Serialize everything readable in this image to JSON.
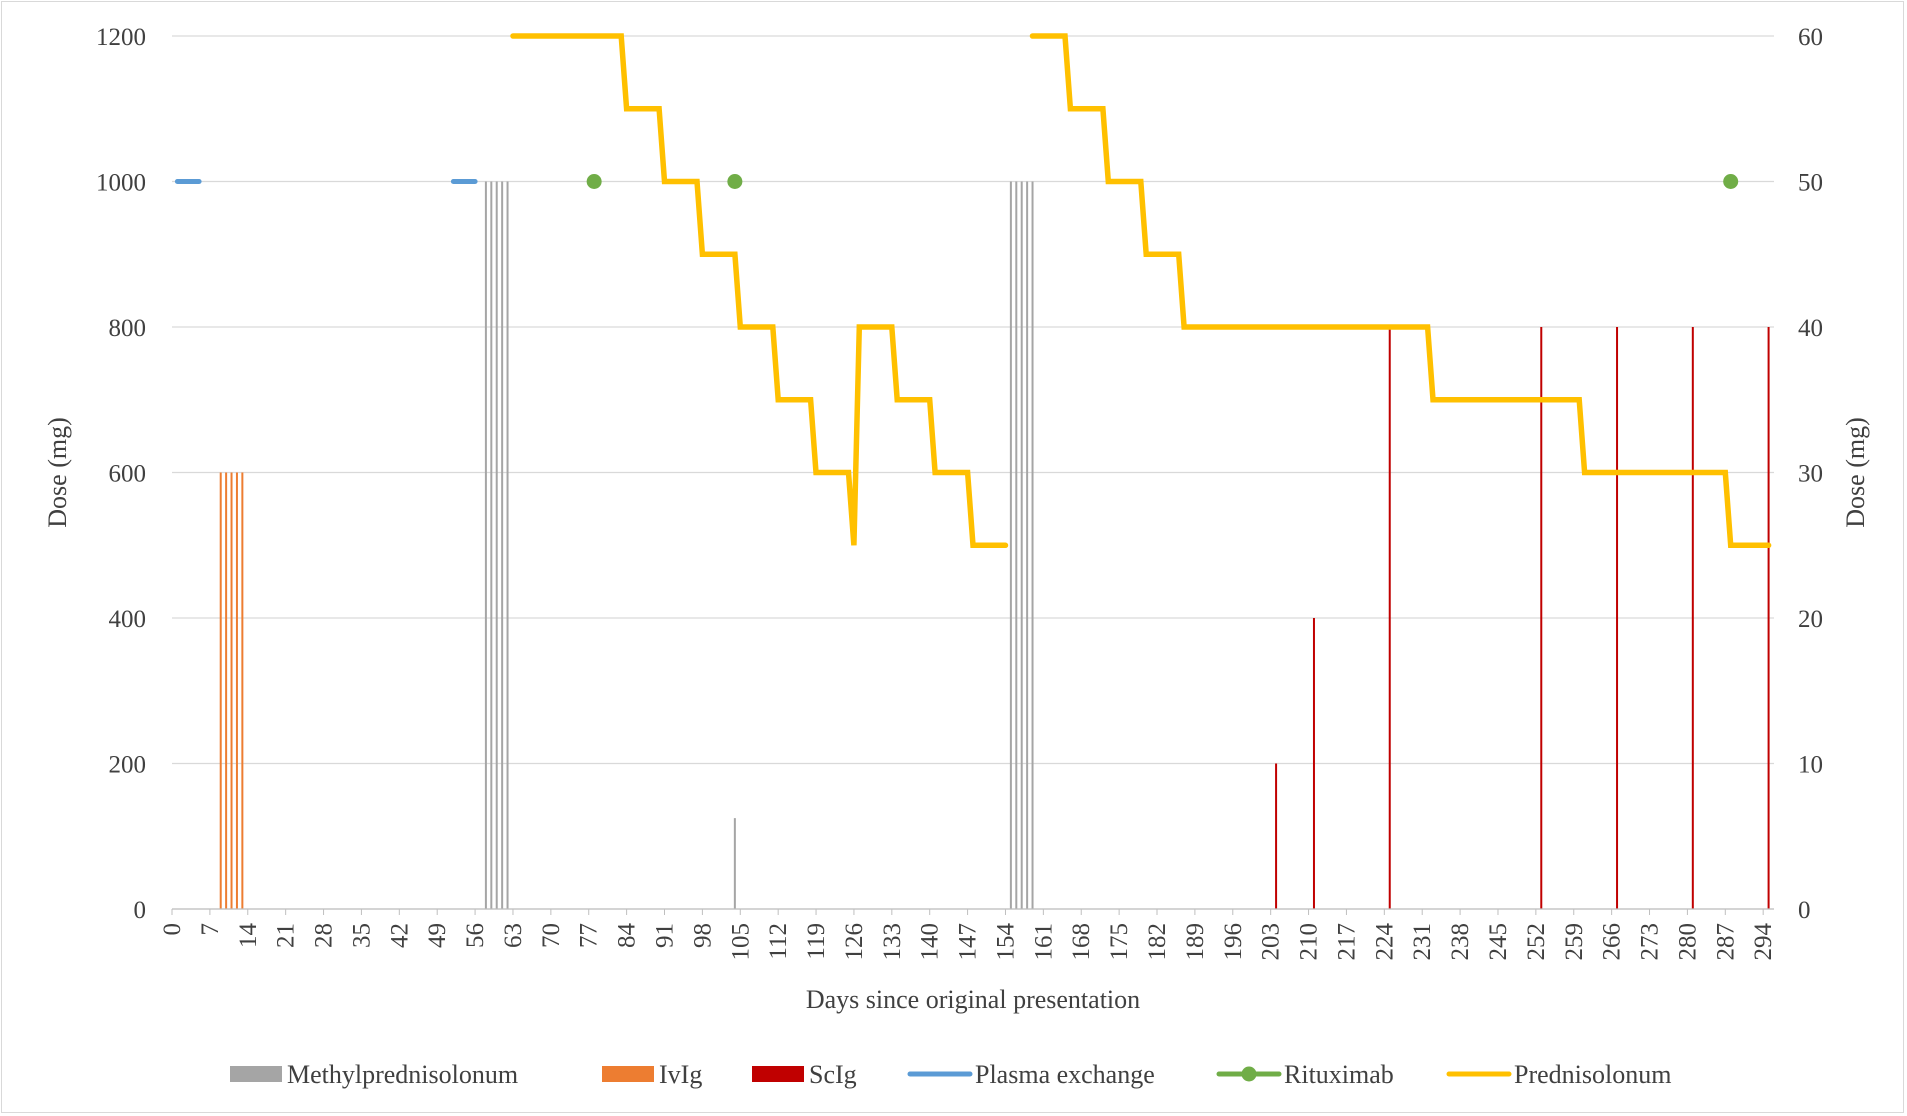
{
  "chart_data": {
    "type": "line",
    "xlabel": "Days since original presentation",
    "ylabel_left": "Dose (mg)",
    "ylabel_right": "Dose (mg)",
    "xlim": [
      0,
      296
    ],
    "ylim_left": [
      0,
      1200
    ],
    "ylim_right": [
      0,
      60
    ],
    "x_ticks": [
      0,
      7,
      14,
      21,
      28,
      35,
      42,
      49,
      56,
      63,
      70,
      77,
      84,
      91,
      98,
      105,
      112,
      119,
      126,
      133,
      140,
      147,
      154,
      161,
      168,
      175,
      182,
      189,
      196,
      203,
      210,
      217,
      224,
      231,
      238,
      245,
      252,
      259,
      266,
      273,
      280,
      287,
      294
    ],
    "y_ticks_left": [
      0,
      200,
      400,
      600,
      800,
      1000,
      1200
    ],
    "y_ticks_right": [
      0,
      10,
      20,
      30,
      40,
      50,
      60
    ],
    "grid": "horizontal",
    "legend_position": "bottom",
    "series": [
      {
        "name": "Methylprednisolonum",
        "type": "bar",
        "axis": "left",
        "color": "#a5a5a5",
        "points": [
          [
            58,
            1000
          ],
          [
            59,
            1000
          ],
          [
            60,
            1000
          ],
          [
            61,
            1000
          ],
          [
            62,
            1000
          ],
          [
            104,
            125
          ],
          [
            155,
            1000
          ],
          [
            156,
            1000
          ],
          [
            157,
            1000
          ],
          [
            158,
            1000
          ],
          [
            159,
            1000
          ]
        ]
      },
      {
        "name": "IvIg",
        "type": "bar",
        "axis": "left",
        "color": "#ed7d31",
        "points": [
          [
            9,
            600
          ],
          [
            10,
            600
          ],
          [
            11,
            600
          ],
          [
            12,
            600
          ],
          [
            13,
            600
          ]
        ]
      },
      {
        "name": "ScIg",
        "type": "bar",
        "axis": "left",
        "color": "#c00000",
        "points": [
          [
            204,
            200
          ],
          [
            211,
            400
          ],
          [
            225,
            800
          ],
          [
            253,
            800
          ],
          [
            267,
            800
          ],
          [
            281,
            800
          ],
          [
            295,
            800
          ]
        ]
      },
      {
        "name": "Plasma exchange",
        "type": "line",
        "axis": "left",
        "color": "#5b9bd5",
        "segments": [
          [
            [
              1,
              1000
            ],
            [
              5,
              1000
            ]
          ],
          [
            [
              52,
              1000
            ],
            [
              56,
              1000
            ]
          ]
        ]
      },
      {
        "name": "Rituximab",
        "type": "scatter",
        "axis": "left",
        "color": "#70ad47",
        "points": [
          [
            78,
            1000
          ],
          [
            104,
            1000
          ],
          [
            288,
            1000
          ]
        ]
      },
      {
        "name": "Prednisolonum",
        "type": "line",
        "axis": "right",
        "color": "#ffc000",
        "segments": [
          [
            [
              63,
              60
            ],
            [
              83,
              60
            ],
            [
              84,
              55
            ],
            [
              90,
              55
            ],
            [
              91,
              50
            ],
            [
              97,
              50
            ],
            [
              98,
              45
            ],
            [
              104,
              45
            ],
            [
              105,
              40
            ],
            [
              111,
              40
            ],
            [
              112,
              35
            ],
            [
              118,
              35
            ],
            [
              119,
              30
            ],
            [
              125,
              30
            ],
            [
              126,
              25
            ],
            [
              127,
              40
            ],
            [
              133,
              40
            ],
            [
              134,
              35
            ],
            [
              140,
              35
            ],
            [
              141,
              30
            ],
            [
              147,
              30
            ],
            [
              148,
              25
            ],
            [
              154,
              25
            ]
          ],
          [
            [
              159,
              60
            ],
            [
              165,
              60
            ],
            [
              166,
              55
            ],
            [
              172,
              55
            ],
            [
              173,
              50
            ],
            [
              179,
              50
            ],
            [
              180,
              45
            ],
            [
              186,
              45
            ],
            [
              187,
              40
            ],
            [
              232,
              40
            ],
            [
              233,
              35
            ],
            [
              260,
              35
            ],
            [
              261,
              30
            ],
            [
              287,
              30
            ],
            [
              288,
              25
            ],
            [
              295,
              25
            ]
          ]
        ]
      }
    ]
  }
}
